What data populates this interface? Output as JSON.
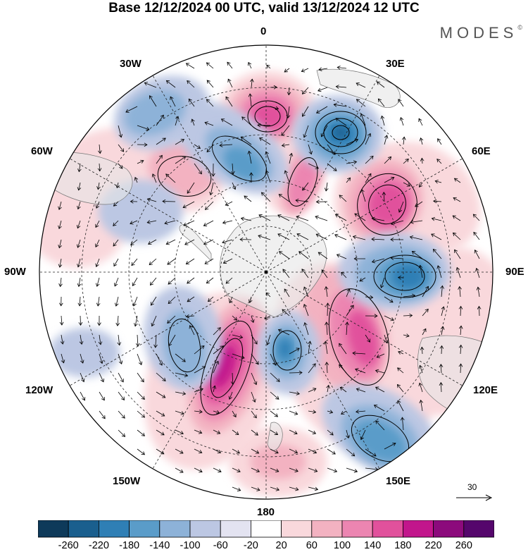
{
  "title": "Base 12/12/2024 00 UTC, valid 13/12/2024 12 UTC",
  "brand": "MODES",
  "brand_mark": "©",
  "longitude_labels": {
    "lon_0": "0",
    "lon_30E": "30E",
    "lon_60E": "60E",
    "lon_90E": "90E",
    "lon_120E": "120E",
    "lon_150E": "150E",
    "lon_180": "180",
    "lon_150W": "150W",
    "lon_120W": "120W",
    "lon_90W": "90W",
    "lon_60W": "60W",
    "lon_30W": "30W"
  },
  "vector_scale": {
    "value": "30"
  },
  "colorbar": {
    "labels": [
      "-260",
      "-220",
      "-180",
      "-140",
      "-100",
      "-60",
      "-20",
      "20",
      "60",
      "100",
      "140",
      "180",
      "220",
      "260"
    ],
    "colors": [
      "#0e3a5a",
      "#1a5f8e",
      "#2f7fb5",
      "#5a9cc9",
      "#8db2d8",
      "#bcc7e3",
      "#e3e3f1",
      "#ffffff",
      "#f9d8dc",
      "#f3b2c1",
      "#ec85b1",
      "#e1519c",
      "#c2168c",
      "#8c0a7c",
      "#55066c"
    ]
  },
  "map_style": {
    "projection": "south-polar-stereographic",
    "land_color": "#e6e6e6",
    "coastline_color": "#777777",
    "graticule_color": "#222222"
  }
}
